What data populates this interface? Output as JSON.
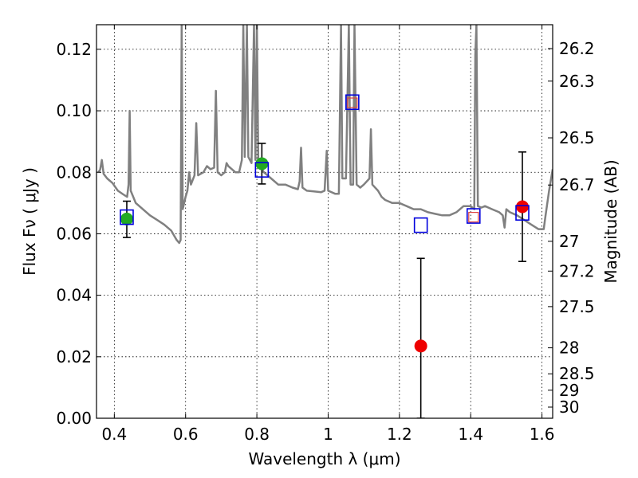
{
  "chart_data": {
    "type": "scatter",
    "title": "",
    "xlabel": "Wavelength  λ (μm)",
    "ylabel": "Flux  Fν  ( μJy )",
    "y2label": "Magnitude (AB)",
    "xlim": [
      0.35,
      1.63
    ],
    "ylim": [
      0.0,
      0.128
    ],
    "grid": true,
    "x_ticks": [
      0.4,
      0.6,
      0.8,
      1.0,
      1.2,
      1.4,
      1.6
    ],
    "x_tick_labels": [
      "0.4",
      "0.6",
      "0.8",
      "1",
      "1.2",
      "1.4",
      "1.6"
    ],
    "y_ticks": [
      0.0,
      0.02,
      0.04,
      0.06,
      0.08,
      0.1,
      0.12
    ],
    "y_tick_labels": [
      "0.00",
      "0.02",
      "0.04",
      "0.06",
      "0.08",
      "0.10",
      "0.12"
    ],
    "mag_ticks": [
      {
        "mag": 26.2,
        "label": "26.2"
      },
      {
        "mag": 26.3,
        "label": "26.3"
      },
      {
        "mag": 26.5,
        "label": "26.5"
      },
      {
        "mag": 26.7,
        "label": "26.7"
      },
      {
        "mag": 27.0,
        "label": "27"
      },
      {
        "mag": 27.2,
        "label": "27.2"
      },
      {
        "mag": 27.5,
        "label": "27.5"
      },
      {
        "mag": 28.0,
        "label": "28"
      },
      {
        "mag": 28.5,
        "label": "28.5"
      },
      {
        "mag": 29.0,
        "label": "29"
      },
      {
        "mag": 30.0,
        "label": "30"
      }
    ],
    "colors": {
      "model": "#808080",
      "green": "#22aa22",
      "red": "#ee0000",
      "blue_box": "#0000dd",
      "red_box": "#dd4444",
      "errorbar": "#000000"
    },
    "series": [
      {
        "marker": "green-circle",
        "points": [
          {
            "x": 0.435,
            "y": 0.0648,
            "yerr_low": 0.0588,
            "yerr_high": 0.0706
          },
          {
            "x": 0.814,
            "y": 0.0828,
            "yerr_low": 0.0762,
            "yerr_high": 0.0894
          }
        ]
      },
      {
        "marker": "red-circle",
        "points": [
          {
            "x": 1.26,
            "y": 0.0235,
            "yerr_low": 0.0,
            "yerr_high": 0.052
          },
          {
            "x": 1.545,
            "y": 0.0688,
            "yerr_low": 0.051,
            "yerr_high": 0.0866
          }
        ]
      },
      {
        "marker": "blue-square",
        "points": [
          {
            "x": 0.435,
            "y": 0.0654
          },
          {
            "x": 0.814,
            "y": 0.0808
          },
          {
            "x": 1.068,
            "y": 0.1028
          },
          {
            "x": 1.26,
            "y": 0.0628
          },
          {
            "x": 1.408,
            "y": 0.0658
          },
          {
            "x": 1.545,
            "y": 0.0668
          }
        ]
      },
      {
        "marker": "red-square",
        "points": [
          {
            "x": 1.068,
            "y": 0.1026
          },
          {
            "x": 1.408,
            "y": 0.0654
          }
        ]
      },
      {
        "marker": "model-line",
        "points": [
          [
            0.355,
            0.08
          ],
          [
            0.36,
            0.0808
          ],
          [
            0.365,
            0.084
          ],
          [
            0.37,
            0.0795
          ],
          [
            0.38,
            0.078
          ],
          [
            0.395,
            0.0765
          ],
          [
            0.41,
            0.074
          ],
          [
            0.425,
            0.0728
          ],
          [
            0.436,
            0.072
          ],
          [
            0.44,
            0.076
          ],
          [
            0.443,
            0.1
          ],
          [
            0.446,
            0.074
          ],
          [
            0.46,
            0.07
          ],
          [
            0.48,
            0.068
          ],
          [
            0.5,
            0.066
          ],
          [
            0.52,
            0.0645
          ],
          [
            0.54,
            0.063
          ],
          [
            0.56,
            0.061
          ],
          [
            0.575,
            0.058
          ],
          [
            0.582,
            0.057
          ],
          [
            0.586,
            0.058
          ],
          [
            0.589,
            0.128
          ],
          [
            0.592,
            0.068
          ],
          [
            0.6,
            0.072
          ],
          [
            0.605,
            0.074
          ],
          [
            0.61,
            0.08
          ],
          [
            0.615,
            0.076
          ],
          [
            0.625,
            0.079
          ],
          [
            0.63,
            0.096
          ],
          [
            0.635,
            0.079
          ],
          [
            0.65,
            0.08
          ],
          [
            0.66,
            0.082
          ],
          [
            0.67,
            0.081
          ],
          [
            0.68,
            0.0815
          ],
          [
            0.685,
            0.1065
          ],
          [
            0.69,
            0.08
          ],
          [
            0.7,
            0.079
          ],
          [
            0.71,
            0.08
          ],
          [
            0.715,
            0.083
          ],
          [
            0.72,
            0.082
          ],
          [
            0.73,
            0.081
          ],
          [
            0.74,
            0.08
          ],
          [
            0.75,
            0.08
          ],
          [
            0.758,
            0.084
          ],
          [
            0.762,
            0.128
          ],
          [
            0.766,
            0.085
          ],
          [
            0.772,
            0.128
          ],
          [
            0.776,
            0.085
          ],
          [
            0.785,
            0.083
          ],
          [
            0.792,
            0.128
          ],
          [
            0.796,
            0.084
          ],
          [
            0.8,
            0.128
          ],
          [
            0.804,
            0.083
          ],
          [
            0.82,
            0.08
          ],
          [
            0.84,
            0.078
          ],
          [
            0.86,
            0.076
          ],
          [
            0.88,
            0.076
          ],
          [
            0.9,
            0.075
          ],
          [
            0.915,
            0.0745
          ],
          [
            0.92,
            0.077
          ],
          [
            0.924,
            0.088
          ],
          [
            0.928,
            0.075
          ],
          [
            0.94,
            0.074
          ],
          [
            0.96,
            0.0738
          ],
          [
            0.98,
            0.0735
          ],
          [
            0.99,
            0.074
          ],
          [
            0.996,
            0.087
          ],
          [
            1.0,
            0.074
          ],
          [
            1.02,
            0.073
          ],
          [
            1.03,
            0.073
          ],
          [
            1.036,
            0.128
          ],
          [
            1.04,
            0.078
          ],
          [
            1.05,
            0.078
          ],
          [
            1.058,
            0.128
          ],
          [
            1.063,
            0.076
          ],
          [
            1.07,
            0.076
          ],
          [
            1.074,
            0.128
          ],
          [
            1.08,
            0.076
          ],
          [
            1.09,
            0.075
          ],
          [
            1.1,
            0.076
          ],
          [
            1.116,
            0.078
          ],
          [
            1.12,
            0.094
          ],
          [
            1.124,
            0.076
          ],
          [
            1.14,
            0.074
          ],
          [
            1.15,
            0.072
          ],
          [
            1.16,
            0.071
          ],
          [
            1.18,
            0.07
          ],
          [
            1.2,
            0.07
          ],
          [
            1.22,
            0.069
          ],
          [
            1.24,
            0.068
          ],
          [
            1.26,
            0.068
          ],
          [
            1.28,
            0.067
          ],
          [
            1.3,
            0.0665
          ],
          [
            1.32,
            0.066
          ],
          [
            1.34,
            0.066
          ],
          [
            1.36,
            0.067
          ],
          [
            1.38,
            0.069
          ],
          [
            1.4,
            0.069
          ],
          [
            1.41,
            0.068
          ],
          [
            1.413,
            0.118
          ],
          [
            1.416,
            0.128
          ],
          [
            1.42,
            0.069
          ],
          [
            1.43,
            0.0685
          ],
          [
            1.44,
            0.069
          ],
          [
            1.46,
            0.068
          ],
          [
            1.48,
            0.067
          ],
          [
            1.49,
            0.066
          ],
          [
            1.495,
            0.062
          ],
          [
            1.5,
            0.068
          ],
          [
            1.51,
            0.067
          ],
          [
            1.53,
            0.066
          ],
          [
            1.55,
            0.0645
          ],
          [
            1.57,
            0.063
          ],
          [
            1.59,
            0.0615
          ],
          [
            1.605,
            0.0615
          ],
          [
            1.61,
            0.066
          ],
          [
            1.62,
            0.074
          ],
          [
            1.63,
            0.081
          ]
        ]
      }
    ]
  }
}
